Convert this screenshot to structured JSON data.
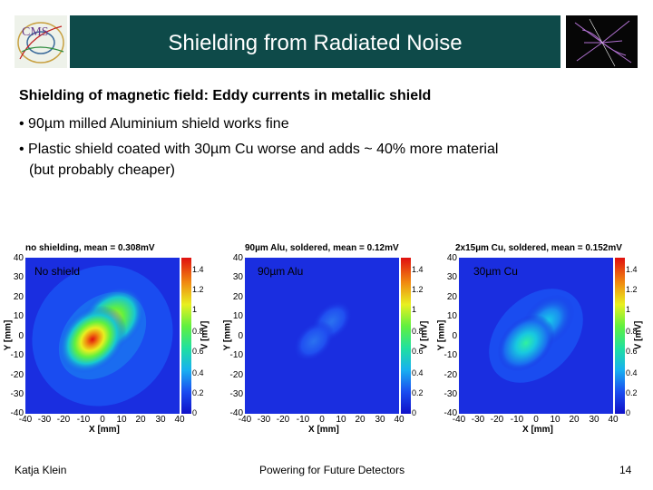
{
  "header": {
    "title": "Shielding from Radiated Noise",
    "logo_icon": "cms-logo",
    "event_icon": "particle-event-display"
  },
  "subtitle": "Shielding of magnetic field: Eddy currents in metallic shield",
  "bullets": [
    "• 90µm milled Aluminium shield works fine",
    "• Plastic shield coated with 30µm Cu worse and adds ~ 40% more material",
    "(but probably cheaper)"
  ],
  "plots": [
    {
      "title": "no shielding, mean = 0.308mV",
      "label": "No shield",
      "xlabel": "X [mm]",
      "ylabel": "Y [mm]",
      "zlabel": "V [mV]",
      "xticks": [
        "-40",
        "-30",
        "-20",
        "-10",
        "0",
        "10",
        "20",
        "30",
        "40"
      ],
      "yticks": [
        "40",
        "30",
        "20",
        "10",
        "0",
        "-10",
        "-20",
        "-30",
        "-40"
      ],
      "cticks": [
        "1.4",
        "1.2",
        "1",
        "0.8",
        "0.6",
        "0.4",
        "0.2",
        "0"
      ]
    },
    {
      "title": "90µm Alu, soldered, mean = 0.12mV",
      "label": "90µm Alu",
      "xlabel": "X [mm]",
      "ylabel": "Y [mm]",
      "zlabel": "V [mV]",
      "xticks": [
        "-40",
        "-30",
        "-20",
        "-10",
        "0",
        "10",
        "20",
        "30",
        "40"
      ],
      "yticks": [
        "40",
        "30",
        "20",
        "10",
        "0",
        "-10",
        "-20",
        "-30",
        "-40"
      ],
      "cticks": [
        "1.4",
        "1.2",
        "1",
        "0.8",
        "0.6",
        "0.4",
        "0.2",
        "0"
      ]
    },
    {
      "title": "2x15µm Cu, soldered, mean = 0.152mV",
      "label": "30µm Cu",
      "xlabel": "X [mm]",
      "ylabel": "Y [mm]",
      "zlabel": "V [mV]",
      "xticks": [
        "-40",
        "-30",
        "-20",
        "-10",
        "0",
        "10",
        "20",
        "30",
        "40"
      ],
      "yticks": [
        "40",
        "30",
        "20",
        "10",
        "0",
        "-10",
        "-20",
        "-30",
        "-40"
      ],
      "cticks": [
        "1.4",
        "1.2",
        "1",
        "0.8",
        "0.6",
        "0.4",
        "0.2",
        "0"
      ]
    }
  ],
  "footer": {
    "author": "Katja Klein",
    "event": "Powering for Future Detectors",
    "page": "14"
  }
}
